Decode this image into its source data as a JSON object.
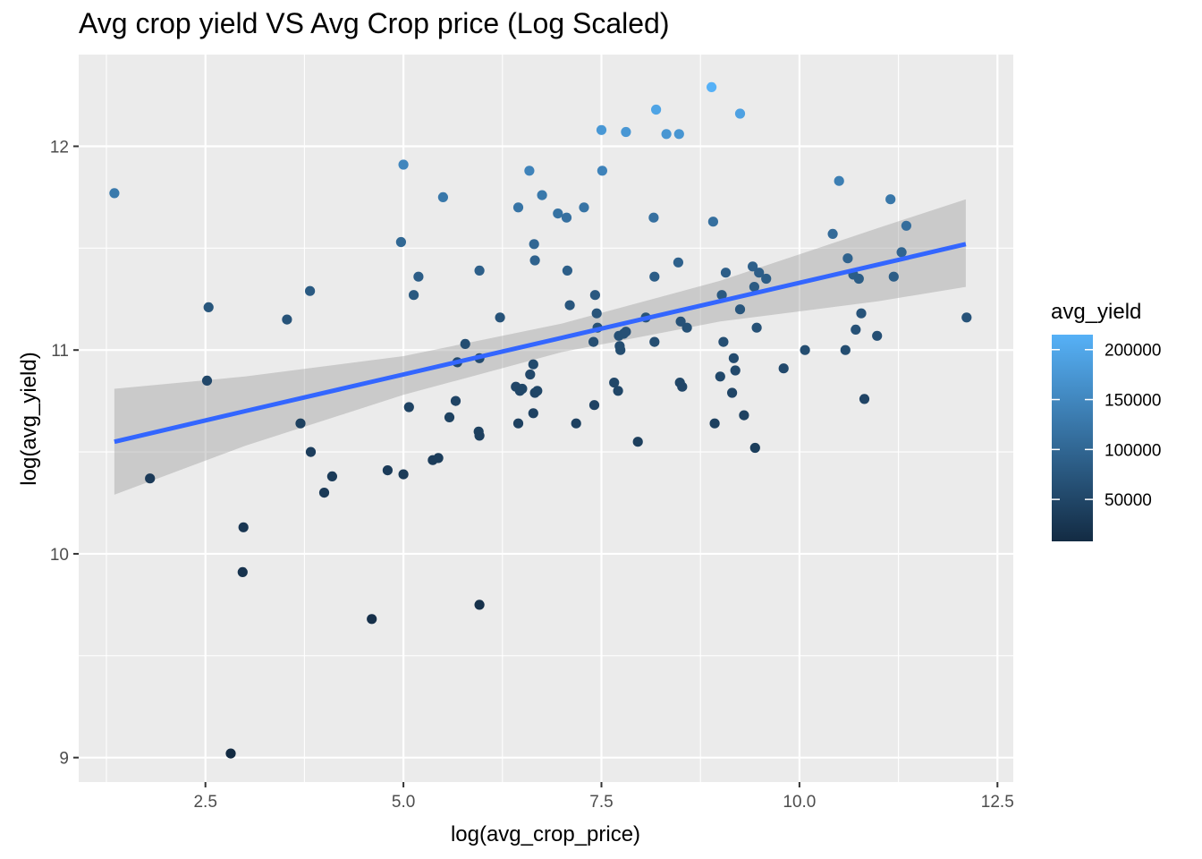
{
  "chart_data": {
    "type": "scatter",
    "title": "Avg crop yield VS Avg Crop price (Log Scaled)",
    "xlabel": "log(avg_crop_price)",
    "ylabel": "log(avg_yield)",
    "xlim": [
      0.9,
      12.7
    ],
    "ylim": [
      8.88,
      12.45
    ],
    "x_ticks": [
      2.5,
      5.0,
      7.5,
      10.0,
      12.5
    ],
    "x_tick_labels": [
      "2.5",
      "5.0",
      "7.5",
      "10.0",
      "12.5"
    ],
    "y_ticks": [
      9,
      10,
      11,
      12
    ],
    "y_tick_labels": [
      "9",
      "10",
      "11",
      "12"
    ],
    "grid": true,
    "legend": {
      "title": "avg_yield",
      "position": "right",
      "type": "colorbar",
      "range": [
        8000,
        215000
      ],
      "breaks": [
        50000,
        100000,
        150000,
        200000
      ],
      "break_labels": [
        "50000",
        "100000",
        "150000",
        "200000"
      ],
      "low_color": "#132B43",
      "high_color": "#56B1F7"
    },
    "fit_line": {
      "method": "lm",
      "color": "#3366FF",
      "ribbon_color": "#999999",
      "x": [
        1.35,
        3.0,
        5.0,
        7.0,
        9.0,
        11.0,
        12.1
      ],
      "y": [
        10.55,
        10.7,
        10.88,
        11.06,
        11.24,
        11.42,
        11.52
      ],
      "lower": [
        10.29,
        10.53,
        10.78,
        10.99,
        11.14,
        11.24,
        11.31
      ],
      "upper": [
        10.81,
        10.87,
        10.97,
        11.13,
        11.34,
        11.6,
        11.74
      ]
    },
    "points": [
      {
        "x": 1.35,
        "y": 11.77
      },
      {
        "x": 1.8,
        "y": 10.37
      },
      {
        "x": 2.52,
        "y": 10.85
      },
      {
        "x": 2.54,
        "y": 11.21
      },
      {
        "x": 2.82,
        "y": 9.02
      },
      {
        "x": 2.97,
        "y": 9.91
      },
      {
        "x": 2.98,
        "y": 10.13
      },
      {
        "x": 3.53,
        "y": 11.15
      },
      {
        "x": 3.7,
        "y": 10.64
      },
      {
        "x": 3.82,
        "y": 11.29
      },
      {
        "x": 3.83,
        "y": 10.5
      },
      {
        "x": 4.0,
        "y": 10.3
      },
      {
        "x": 4.1,
        "y": 10.38
      },
      {
        "x": 4.6,
        "y": 9.68
      },
      {
        "x": 4.8,
        "y": 10.41
      },
      {
        "x": 4.97,
        "y": 11.53
      },
      {
        "x": 5.0,
        "y": 11.91
      },
      {
        "x": 5.0,
        "y": 10.39
      },
      {
        "x": 5.07,
        "y": 10.72
      },
      {
        "x": 5.13,
        "y": 11.27
      },
      {
        "x": 5.19,
        "y": 11.36
      },
      {
        "x": 5.37,
        "y": 10.46
      },
      {
        "x": 5.44,
        "y": 10.47
      },
      {
        "x": 5.5,
        "y": 11.75
      },
      {
        "x": 5.58,
        "y": 10.67
      },
      {
        "x": 5.66,
        "y": 10.75
      },
      {
        "x": 5.68,
        "y": 10.94
      },
      {
        "x": 5.78,
        "y": 11.03
      },
      {
        "x": 5.95,
        "y": 10.6
      },
      {
        "x": 5.96,
        "y": 11.39
      },
      {
        "x": 5.96,
        "y": 10.96
      },
      {
        "x": 5.96,
        "y": 10.58
      },
      {
        "x": 5.96,
        "y": 9.75
      },
      {
        "x": 6.22,
        "y": 11.16
      },
      {
        "x": 6.42,
        "y": 10.82
      },
      {
        "x": 6.45,
        "y": 11.7
      },
      {
        "x": 6.45,
        "y": 10.64
      },
      {
        "x": 6.47,
        "y": 10.8
      },
      {
        "x": 6.5,
        "y": 10.81
      },
      {
        "x": 6.59,
        "y": 11.88
      },
      {
        "x": 6.6,
        "y": 10.88
      },
      {
        "x": 6.64,
        "y": 10.93
      },
      {
        "x": 6.64,
        "y": 10.69
      },
      {
        "x": 6.65,
        "y": 11.52
      },
      {
        "x": 6.66,
        "y": 11.44
      },
      {
        "x": 6.66,
        "y": 10.79
      },
      {
        "x": 6.69,
        "y": 10.8
      },
      {
        "x": 6.75,
        "y": 11.76
      },
      {
        "x": 6.95,
        "y": 11.67
      },
      {
        "x": 7.06,
        "y": 11.65
      },
      {
        "x": 7.07,
        "y": 11.39
      },
      {
        "x": 7.1,
        "y": 11.22
      },
      {
        "x": 7.18,
        "y": 10.64
      },
      {
        "x": 7.28,
        "y": 11.7
      },
      {
        "x": 7.4,
        "y": 11.04
      },
      {
        "x": 7.41,
        "y": 10.73
      },
      {
        "x": 7.42,
        "y": 11.27
      },
      {
        "x": 7.44,
        "y": 11.18
      },
      {
        "x": 7.45,
        "y": 11.11
      },
      {
        "x": 7.5,
        "y": 12.08
      },
      {
        "x": 7.51,
        "y": 11.88
      },
      {
        "x": 7.66,
        "y": 10.84
      },
      {
        "x": 7.71,
        "y": 10.8
      },
      {
        "x": 7.72,
        "y": 11.07
      },
      {
        "x": 7.73,
        "y": 11.02
      },
      {
        "x": 7.74,
        "y": 11.0
      },
      {
        "x": 7.78,
        "y": 11.08
      },
      {
        "x": 7.81,
        "y": 11.09
      },
      {
        "x": 7.81,
        "y": 12.07
      },
      {
        "x": 7.96,
        "y": 10.55
      },
      {
        "x": 8.06,
        "y": 11.16
      },
      {
        "x": 8.16,
        "y": 11.65
      },
      {
        "x": 8.17,
        "y": 11.36
      },
      {
        "x": 8.17,
        "y": 11.04
      },
      {
        "x": 8.19,
        "y": 12.18
      },
      {
        "x": 8.32,
        "y": 12.06
      },
      {
        "x": 8.47,
        "y": 11.43
      },
      {
        "x": 8.48,
        "y": 12.06
      },
      {
        "x": 8.49,
        "y": 10.84
      },
      {
        "x": 8.5,
        "y": 11.14
      },
      {
        "x": 8.52,
        "y": 10.82
      },
      {
        "x": 8.58,
        "y": 11.11
      },
      {
        "x": 8.89,
        "y": 12.29
      },
      {
        "x": 8.91,
        "y": 11.63
      },
      {
        "x": 8.93,
        "y": 10.64
      },
      {
        "x": 9.0,
        "y": 10.87
      },
      {
        "x": 9.02,
        "y": 11.27
      },
      {
        "x": 9.04,
        "y": 11.04
      },
      {
        "x": 9.07,
        "y": 11.38
      },
      {
        "x": 9.15,
        "y": 10.79
      },
      {
        "x": 9.17,
        "y": 10.96
      },
      {
        "x": 9.19,
        "y": 10.9
      },
      {
        "x": 9.25,
        "y": 12.16
      },
      {
        "x": 9.25,
        "y": 11.2
      },
      {
        "x": 9.3,
        "y": 10.68
      },
      {
        "x": 9.41,
        "y": 11.41
      },
      {
        "x": 9.43,
        "y": 11.31
      },
      {
        "x": 9.44,
        "y": 10.52
      },
      {
        "x": 9.46,
        "y": 11.11
      },
      {
        "x": 9.49,
        "y": 11.38
      },
      {
        "x": 9.58,
        "y": 11.35
      },
      {
        "x": 9.8,
        "y": 10.91
      },
      {
        "x": 10.07,
        "y": 11.0
      },
      {
        "x": 10.42,
        "y": 11.57
      },
      {
        "x": 10.5,
        "y": 11.83
      },
      {
        "x": 10.58,
        "y": 11.0
      },
      {
        "x": 10.61,
        "y": 11.45
      },
      {
        "x": 10.68,
        "y": 11.37
      },
      {
        "x": 10.71,
        "y": 11.1
      },
      {
        "x": 10.75,
        "y": 11.35
      },
      {
        "x": 10.78,
        "y": 11.18
      },
      {
        "x": 10.82,
        "y": 10.76
      },
      {
        "x": 10.98,
        "y": 11.07
      },
      {
        "x": 11.15,
        "y": 11.74
      },
      {
        "x": 11.19,
        "y": 11.36
      },
      {
        "x": 11.29,
        "y": 11.48
      },
      {
        "x": 11.35,
        "y": 11.61
      },
      {
        "x": 12.11,
        "y": 11.16
      }
    ]
  }
}
